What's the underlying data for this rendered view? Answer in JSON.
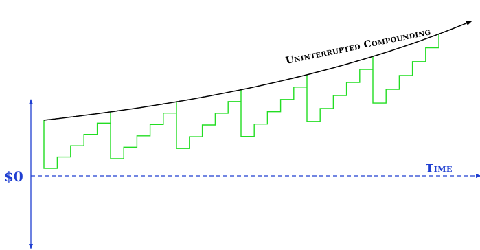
{
  "labels": {
    "zero": "$0",
    "time": "Time",
    "curve": "Uninterrupted Compounding"
  },
  "colors": {
    "axis": "#1f3fd1",
    "curve": "#000000",
    "steps": "#22dd22"
  },
  "chart_data": {
    "type": "line",
    "series": [
      {
        "name": "Uninterrupted Compounding",
        "shape": "smooth-exponential"
      },
      {
        "shape": "staircase",
        "cycles": 6,
        "steps_per_cycle": 5
      }
    ]
  }
}
